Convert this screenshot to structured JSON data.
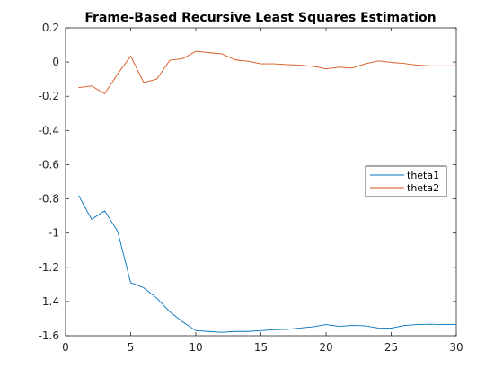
{
  "chart_data": {
    "type": "line",
    "title": "Frame-Based Recursive Least Squares Estimation",
    "xlabel": "",
    "ylabel": "",
    "xlim": [
      0,
      30
    ],
    "ylim": [
      -1.6,
      0.2
    ],
    "x_ticks": [
      0,
      5,
      10,
      15,
      20,
      25,
      30
    ],
    "y_ticks": [
      0.2,
      0,
      -0.2,
      -0.4,
      -0.6,
      -0.8,
      -1,
      -1.2,
      -1.4,
      -1.6
    ],
    "grid": false,
    "legend_position": "right",
    "x": [
      1,
      2,
      3,
      4,
      5,
      6,
      7,
      8,
      9,
      10,
      11,
      12,
      13,
      14,
      15,
      16,
      17,
      18,
      19,
      20,
      21,
      22,
      23,
      24,
      25,
      26,
      27,
      28,
      29,
      30
    ],
    "series": [
      {
        "name": "theta1",
        "color": "#0072BD",
        "values": [
          -0.78,
          -0.92,
          -0.87,
          -0.99,
          -1.29,
          -1.32,
          -1.38,
          -1.46,
          -1.52,
          -1.57,
          -1.575,
          -1.58,
          -1.575,
          -1.575,
          -1.57,
          -1.565,
          -1.563,
          -1.555,
          -1.548,
          -1.535,
          -1.545,
          -1.54,
          -1.542,
          -1.555,
          -1.556,
          -1.54,
          -1.535,
          -1.533,
          -1.535,
          -1.535
        ]
      },
      {
        "name": "theta2",
        "color": "#D95319",
        "values": [
          -0.15,
          -0.14,
          -0.185,
          -0.07,
          0.035,
          -0.12,
          -0.1,
          0.01,
          0.02,
          0.063,
          0.055,
          0.048,
          0.013,
          0.005,
          -0.01,
          -0.01,
          -0.015,
          -0.018,
          -0.025,
          -0.04,
          -0.03,
          -0.035,
          -0.01,
          0.007,
          -0.002,
          -0.008,
          -0.018,
          -0.022,
          -0.022,
          -0.022
        ]
      }
    ]
  }
}
